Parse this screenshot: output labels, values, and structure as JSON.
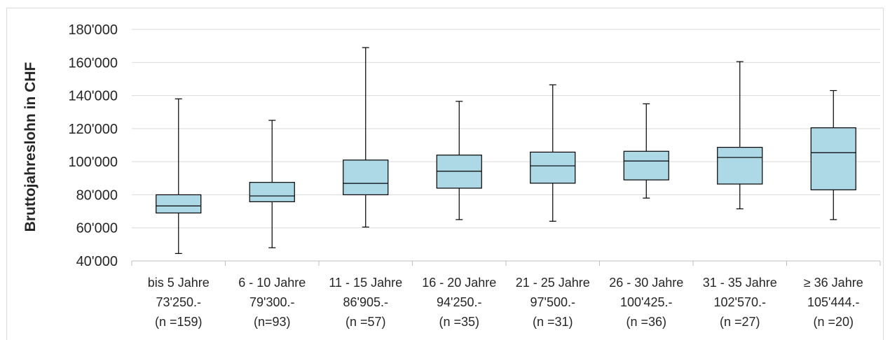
{
  "chart_data": {
    "type": "boxplot",
    "title": "",
    "xlabel": "",
    "ylabel": "Bruttojahreslohn in CHF",
    "ylim": [
      40000,
      180000
    ],
    "yticks": [
      40000,
      60000,
      80000,
      100000,
      120000,
      140000,
      160000,
      180000
    ],
    "ytick_labels": [
      "40'000",
      "60'000",
      "80'000",
      "100'000",
      "120'000",
      "140'000",
      "160'000",
      "180'000"
    ],
    "grid": true,
    "box_color": "#add8e6",
    "categories": [
      {
        "lines": [
          "bis 5 Jahre",
          "73'250.-",
          "(n =159)"
        ],
        "min": 44500,
        "q1": 69000,
        "median": 73250,
        "q3": 80000,
        "max": 138000
      },
      {
        "lines": [
          "6 - 10 Jahre",
          "79'300.-",
          "(n=93)"
        ],
        "min": 48000,
        "q1": 75800,
        "median": 79300,
        "q3": 87500,
        "max": 125000
      },
      {
        "lines": [
          "11 - 15 Jahre",
          "86'905.-",
          "(n =57)"
        ],
        "min": 60500,
        "q1": 80000,
        "median": 86905,
        "q3": 101000,
        "max": 169000
      },
      {
        "lines": [
          "16 - 20 Jahre",
          "94'250.-",
          "(n =35)"
        ],
        "min": 65000,
        "q1": 84000,
        "median": 94250,
        "q3": 104000,
        "max": 136500
      },
      {
        "lines": [
          "21 - 25 Jahre",
          "97'500.-",
          "(n =31)"
        ],
        "min": 64000,
        "q1": 87000,
        "median": 97500,
        "q3": 105800,
        "max": 146500
      },
      {
        "lines": [
          "26 - 30 Jahre",
          "100'425.-",
          "(n =36)"
        ],
        "min": 78000,
        "q1": 89000,
        "median": 100425,
        "q3": 106300,
        "max": 135000
      },
      {
        "lines": [
          "31 - 35 Jahre",
          "102'570.-",
          "(n =27)"
        ],
        "min": 71500,
        "q1": 86500,
        "median": 102570,
        "q3": 108700,
        "max": 160500
      },
      {
        "lines": [
          "≥ 36 Jahre",
          "105'444.-",
          "(n =20)"
        ],
        "min": 65000,
        "q1": 83000,
        "median": 105444,
        "q3": 120500,
        "max": 143000
      }
    ]
  }
}
